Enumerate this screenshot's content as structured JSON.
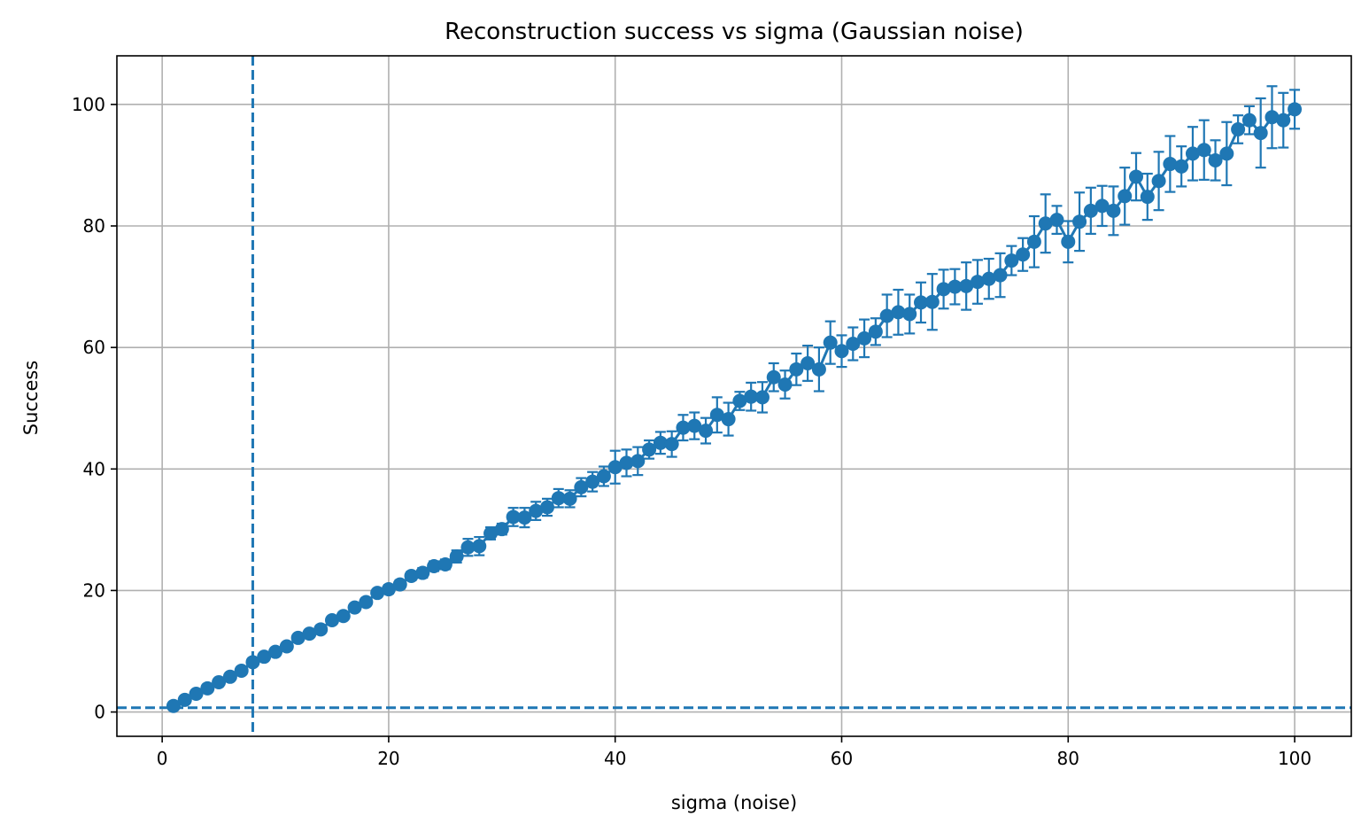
{
  "chart_data": {
    "type": "line",
    "title": "Reconstruction success vs sigma (Gaussian noise)",
    "xlabel": "sigma (noise)",
    "ylabel": "Success",
    "xlim": [
      -4,
      105
    ],
    "ylim": [
      -4,
      108
    ],
    "xticks": [
      0,
      20,
      40,
      60,
      80,
      100
    ],
    "yticks": [
      0,
      20,
      40,
      60,
      80,
      100
    ],
    "grid": true,
    "color": "#1f77b4",
    "reference_lines": {
      "vertical_x": 8,
      "horizontal_y": 0.7
    },
    "series": [
      {
        "marker": "circle",
        "errorbars": true,
        "x": [
          1,
          2,
          3,
          4,
          5,
          6,
          7,
          8,
          9,
          10,
          11,
          12,
          13,
          14,
          15,
          16,
          17,
          18,
          19,
          20,
          21,
          22,
          23,
          24,
          25,
          26,
          27,
          28,
          29,
          30,
          31,
          32,
          33,
          34,
          35,
          36,
          37,
          38,
          39,
          40,
          41,
          42,
          43,
          44,
          45,
          46,
          47,
          48,
          49,
          50,
          51,
          52,
          53,
          54,
          55,
          56,
          57,
          58,
          59,
          60,
          61,
          62,
          63,
          64,
          65,
          66,
          67,
          68,
          69,
          70,
          71,
          72,
          73,
          74,
          75,
          76,
          77,
          78,
          79,
          80,
          81,
          82,
          83,
          84,
          85,
          86,
          87,
          88,
          89,
          90,
          91,
          92,
          93,
          94,
          95,
          96,
          97,
          98,
          99,
          100
        ],
        "y": [
          1.0,
          2.0,
          3.0,
          3.9,
          4.9,
          5.8,
          6.8,
          8.2,
          9.1,
          9.9,
          10.8,
          12.2,
          12.9,
          13.6,
          15.1,
          15.8,
          17.2,
          18.1,
          19.6,
          20.2,
          21.0,
          22.4,
          22.9,
          24.0,
          24.3,
          25.6,
          27.1,
          27.3,
          29.4,
          30.1,
          32.1,
          32.0,
          33.1,
          33.7,
          35.2,
          35.1,
          37.0,
          37.9,
          38.8,
          40.3,
          41.0,
          41.3,
          43.2,
          44.3,
          44.1,
          46.8,
          47.1,
          46.3,
          48.9,
          48.2,
          51.2,
          51.9,
          51.8,
          55.1,
          53.9,
          56.4,
          57.4,
          56.4,
          60.8,
          59.4,
          60.6,
          61.5,
          62.6,
          65.2,
          65.8,
          65.5,
          67.4,
          67.5,
          69.6,
          70.0,
          70.1,
          70.8,
          71.3,
          71.9,
          74.3,
          75.3,
          77.4,
          80.4,
          81.0,
          77.4,
          80.7,
          82.5,
          83.3,
          82.5,
          84.9,
          88.1,
          84.8,
          87.4,
          90.2,
          89.8,
          91.9,
          92.5,
          90.8,
          91.9,
          95.9,
          97.4,
          95.3,
          97.9,
          97.4,
          99.2
        ],
        "err": [
          0.3,
          0.3,
          0.3,
          0.3,
          0.3,
          0.4,
          0.4,
          0.4,
          0.4,
          0.4,
          0.4,
          0.5,
          0.5,
          0.5,
          0.5,
          0.5,
          0.6,
          0.6,
          0.6,
          0.7,
          0.7,
          0.7,
          0.8,
          0.8,
          0.8,
          1.0,
          1.4,
          1.5,
          1.0,
          0.9,
          1.5,
          1.6,
          1.5,
          1.4,
          1.5,
          1.4,
          1.5,
          1.6,
          1.6,
          2.7,
          2.2,
          2.3,
          1.5,
          1.8,
          2.1,
          2.1,
          2.2,
          2.1,
          2.9,
          2.7,
          1.5,
          2.3,
          2.5,
          2.3,
          2.3,
          2.6,
          2.9,
          3.6,
          3.5,
          2.6,
          2.7,
          3.1,
          2.2,
          3.5,
          3.7,
          3.2,
          3.3,
          4.6,
          3.2,
          2.9,
          3.9,
          3.6,
          3.3,
          3.6,
          2.4,
          2.7,
          4.2,
          4.8,
          2.3,
          3.4,
          4.8,
          3.8,
          3.3,
          4.0,
          4.7,
          3.9,
          3.8,
          4.8,
          4.6,
          3.3,
          4.4,
          4.9,
          3.3,
          5.2,
          2.3,
          2.3,
          5.7,
          5.1,
          4.5,
          3.2
        ]
      }
    ]
  }
}
